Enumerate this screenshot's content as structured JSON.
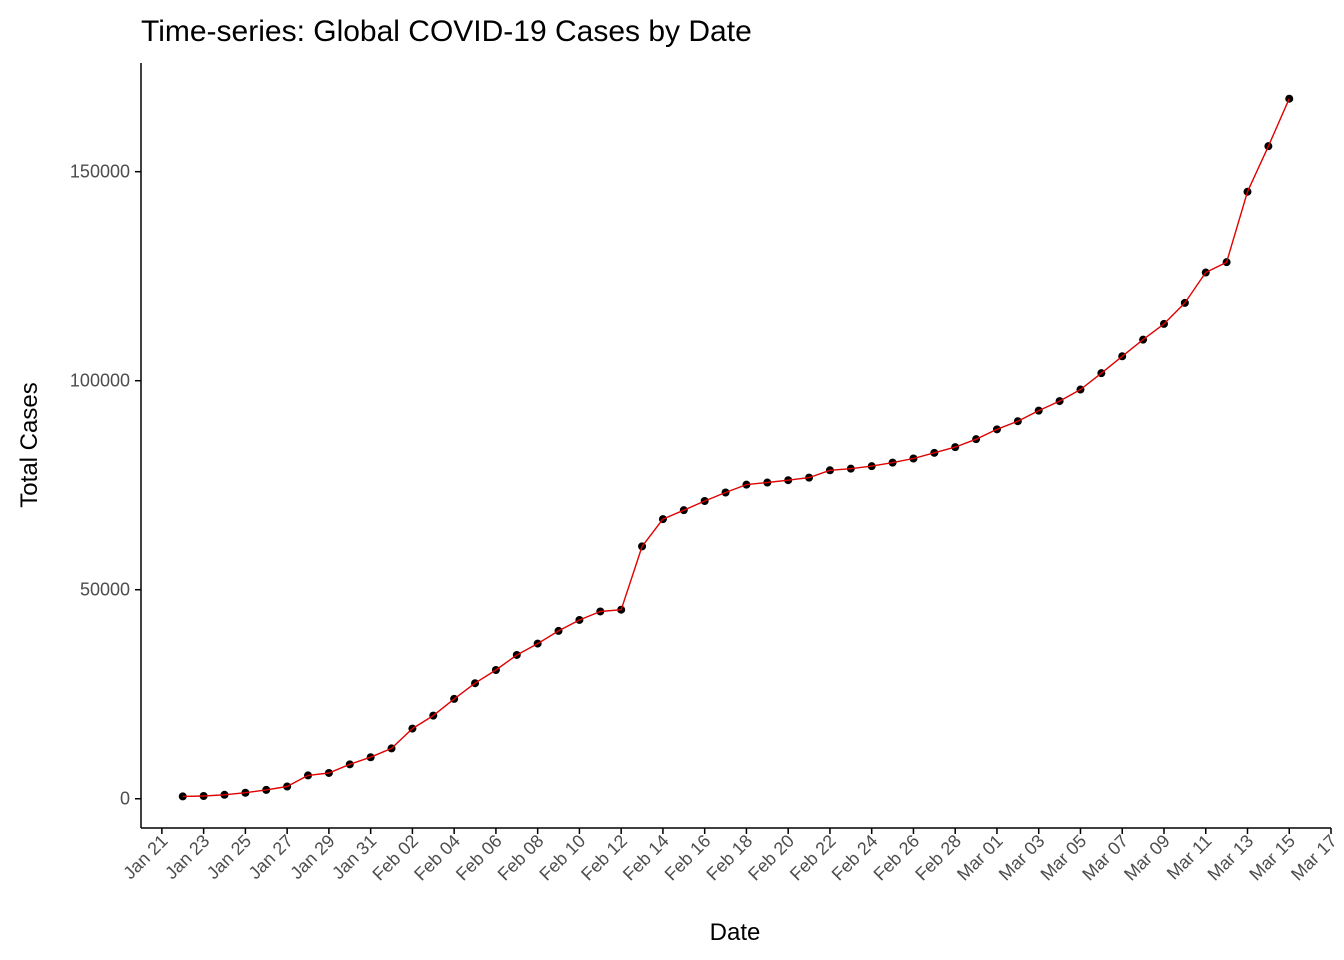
{
  "chart_data": {
    "type": "line",
    "title": "Time-series: Global COVID-19 Cases by Date",
    "xlabel": "Date",
    "ylabel": "Total Cases",
    "x_axis": {
      "type": "date",
      "range": [
        "2020-01-20",
        "2020-03-17"
      ],
      "ticks": [
        "2020-01-21",
        "2020-01-23",
        "2020-01-25",
        "2020-01-27",
        "2020-01-29",
        "2020-01-31",
        "2020-02-02",
        "2020-02-04",
        "2020-02-06",
        "2020-02-08",
        "2020-02-10",
        "2020-02-12",
        "2020-02-14",
        "2020-02-16",
        "2020-02-18",
        "2020-02-20",
        "2020-02-22",
        "2020-02-24",
        "2020-02-26",
        "2020-02-28",
        "2020-03-01",
        "2020-03-03",
        "2020-03-05",
        "2020-03-07",
        "2020-03-09",
        "2020-03-11",
        "2020-03-13",
        "2020-03-15",
        "2020-03-17"
      ],
      "tick_labels": [
        "Jan 21",
        "Jan 23",
        "Jan 25",
        "Jan 27",
        "Jan 29",
        "Jan 31",
        "Feb 02",
        "Feb 04",
        "Feb 06",
        "Feb 08",
        "Feb 10",
        "Feb 12",
        "Feb 14",
        "Feb 16",
        "Feb 18",
        "Feb 20",
        "Feb 22",
        "Feb 24",
        "Feb 26",
        "Feb 28",
        "Mar 01",
        "Mar 03",
        "Mar 05",
        "Mar 07",
        "Mar 09",
        "Mar 11",
        "Mar 13",
        "Mar 15",
        "Mar 17"
      ]
    },
    "y_axis": {
      "range": [
        -7000,
        176000
      ],
      "ticks": [
        0,
        50000,
        100000,
        150000
      ],
      "tick_labels": [
        "0",
        "50000",
        "100000",
        "150000"
      ]
    },
    "grid": false,
    "legend": "none",
    "series": [
      {
        "line_color": "#e00000",
        "point_color": "#000000",
        "x": [
          "2020-01-22",
          "2020-01-23",
          "2020-01-24",
          "2020-01-25",
          "2020-01-26",
          "2020-01-27",
          "2020-01-28",
          "2020-01-29",
          "2020-01-30",
          "2020-01-31",
          "2020-02-01",
          "2020-02-02",
          "2020-02-03",
          "2020-02-04",
          "2020-02-05",
          "2020-02-06",
          "2020-02-07",
          "2020-02-08",
          "2020-02-09",
          "2020-02-10",
          "2020-02-11",
          "2020-02-12",
          "2020-02-13",
          "2020-02-14",
          "2020-02-15",
          "2020-02-16",
          "2020-02-17",
          "2020-02-18",
          "2020-02-19",
          "2020-02-20",
          "2020-02-21",
          "2020-02-22",
          "2020-02-23",
          "2020-02-24",
          "2020-02-25",
          "2020-02-26",
          "2020-02-27",
          "2020-02-28",
          "2020-02-29",
          "2020-03-01",
          "2020-03-02",
          "2020-03-03",
          "2020-03-04",
          "2020-03-05",
          "2020-03-06",
          "2020-03-07",
          "2020-03-08",
          "2020-03-09",
          "2020-03-10",
          "2020-03-11",
          "2020-03-12",
          "2020-03-13",
          "2020-03-14",
          "2020-03-15"
        ],
        "y": [
          555,
          653,
          941,
          1434,
          2118,
          2927,
          5578,
          6166,
          8234,
          9927,
          12038,
          16787,
          19881,
          23892,
          27635,
          30794,
          34391,
          37120,
          40150,
          42762,
          44802,
          45221,
          60368,
          66885,
          69030,
          71224,
          73258,
          75136,
          75639,
          76197,
          76819,
          78572,
          78958,
          79561,
          80406,
          81388,
          82746,
          84112,
          86011,
          88369,
          90306,
          92840,
          95120,
          97886,
          101801,
          105847,
          109821,
          113590,
          118620,
          125875,
          128352,
          145205,
          156101,
          167454
        ]
      }
    ]
  }
}
